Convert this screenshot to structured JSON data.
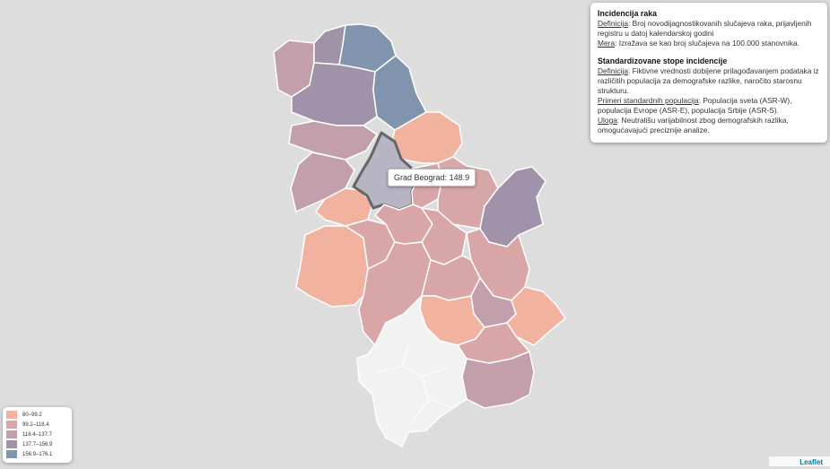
{
  "tooltip": {
    "region": "Grad Beograd",
    "value": "148.9"
  },
  "info": {
    "title1": "Incidencija raka",
    "def1_label": "Definicija",
    "def1_text": ": Broj novodijagnostikovanih slučajeva raka, prijavljenih registru u datoj kalendarskoj godini",
    "mera_label": "Mera",
    "mera_text": ": Izražava se kao broj slučajeva na 100.000 stanovnika.",
    "title2": "Standardizovane stope incidencije",
    "def2_label": "Definicija",
    "def2_text": ": Fiktivne vrednosti dobijene prilagođavanjem podataka iz različitih populacija za demografske razlike, naročito starosnu strukturu.",
    "primeri_label": "Primeri standardnih populacija",
    "primeri_text": ": Populacija sveta (ASR-W), populacija Evrope (ASR-E), populacija Srbije (ASR-S).",
    "uloga_label": "Uloga",
    "uloga_text": ": Neutrališu varijabilnost zbog demografskih razlika, omogućavajući preciznije analize."
  },
  "legend": [
    {
      "label": "80–99.2",
      "color": "#f1b3a0"
    },
    {
      "label": "99.2–118.4",
      "color": "#d9a6a8"
    },
    {
      "label": "118.4–137.7",
      "color": "#c29fab"
    },
    {
      "label": "137.7–156.9",
      "color": "#a093a9"
    },
    {
      "label": "156.9–176.1",
      "color": "#8194ad"
    }
  ],
  "attribution": "Leaflet"
}
